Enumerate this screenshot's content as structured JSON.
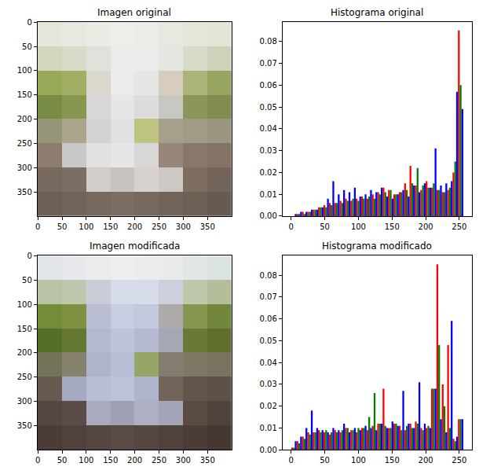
{
  "chart_data": [
    {
      "type": "image",
      "title": "Imagen original",
      "xlim": [
        -0.5,
        399.5
      ],
      "ylim": [
        399.5,
        -0.5
      ],
      "xticks": [
        0,
        50,
        100,
        150,
        200,
        250,
        300,
        350
      ],
      "yticks": [
        0,
        50,
        100,
        150,
        200,
        250,
        300,
        350
      ],
      "pixels": [
        [
          [
            230,
            230,
            220
          ],
          [
            232,
            232,
            224
          ],
          [
            235,
            235,
            228
          ],
          [
            238,
            238,
            232
          ],
          [
            236,
            236,
            230
          ],
          [
            232,
            232,
            225
          ],
          [
            228,
            230,
            218
          ],
          [
            225,
            230,
            215
          ]
        ],
        [
          [
            210,
            215,
            190
          ],
          [
            215,
            220,
            200
          ],
          [
            225,
            225,
            220
          ],
          [
            235,
            235,
            235
          ],
          [
            235,
            235,
            235
          ],
          [
            230,
            230,
            225
          ],
          [
            215,
            220,
            200
          ],
          [
            205,
            210,
            185
          ]
        ],
        [
          [
            150,
            170,
            90
          ],
          [
            160,
            175,
            100
          ],
          [
            220,
            215,
            205
          ],
          [
            235,
            235,
            235
          ],
          [
            230,
            230,
            230
          ],
          [
            215,
            205,
            190
          ],
          [
            170,
            180,
            120
          ],
          [
            150,
            165,
            95
          ]
        ],
        [
          [
            120,
            140,
            70
          ],
          [
            135,
            150,
            80
          ],
          [
            215,
            215,
            215
          ],
          [
            230,
            230,
            230
          ],
          [
            220,
            220,
            220
          ],
          [
            200,
            200,
            195
          ],
          [
            140,
            150,
            90
          ],
          [
            130,
            140,
            80
          ]
        ],
        [
          [
            150,
            150,
            120
          ],
          [
            170,
            165,
            140
          ],
          [
            210,
            210,
            210
          ],
          [
            225,
            225,
            225
          ],
          [
            190,
            195,
            130
          ],
          [
            165,
            160,
            140
          ],
          [
            160,
            155,
            135
          ],
          [
            155,
            150,
            130
          ]
        ],
        [
          [
            140,
            125,
            110
          ],
          [
            200,
            200,
            200
          ],
          [
            225,
            225,
            225
          ],
          [
            230,
            230,
            230
          ],
          [
            215,
            215,
            215
          ],
          [
            150,
            135,
            120
          ],
          [
            135,
            120,
            105
          ],
          [
            130,
            115,
            100
          ]
        ],
        [
          [
            120,
            105,
            95
          ],
          [
            125,
            110,
            100
          ],
          [
            210,
            205,
            200
          ],
          [
            200,
            195,
            190
          ],
          [
            215,
            210,
            205
          ],
          [
            205,
            200,
            195
          ],
          [
            125,
            110,
            95
          ],
          [
            115,
            100,
            90
          ]
        ],
        [
          [
            110,
            95,
            85
          ],
          [
            115,
            100,
            90
          ],
          [
            120,
            105,
            95
          ],
          [
            125,
            110,
            100
          ],
          [
            120,
            105,
            95
          ],
          [
            115,
            100,
            90
          ],
          [
            110,
            95,
            85
          ],
          [
            105,
            90,
            80
          ]
        ]
      ]
    },
    {
      "type": "histogram",
      "title": "Histograma original",
      "xlim": [
        -12.8,
        268.8
      ],
      "ylim": [
        0,
        0.089
      ],
      "xticks": [
        0,
        50,
        100,
        150,
        200,
        250
      ],
      "yticks": [
        {
          "value": 0,
          "label": "0.00"
        },
        {
          "value": 0.01,
          "label": "0.01"
        },
        {
          "value": 0.02,
          "label": "0.02"
        },
        {
          "value": 0.03,
          "label": "0.03"
        },
        {
          "value": 0.04,
          "label": "0.04"
        },
        {
          "value": 0.05,
          "label": "0.05"
        },
        {
          "value": 0.06,
          "label": "0.06"
        },
        {
          "value": 0.07,
          "label": "0.07"
        },
        {
          "value": 0.08,
          "label": "0.08"
        }
      ],
      "bins": [
        0,
        8,
        16,
        24,
        32,
        40,
        48,
        56,
        64,
        72,
        80,
        88,
        96,
        104,
        112,
        120,
        128,
        136,
        144,
        152,
        160,
        168,
        176,
        184,
        192,
        200,
        208,
        216,
        224,
        232,
        240,
        248,
        256
      ],
      "series": [
        {
          "color": "#ff0000",
          "values": [
            0,
            0.001,
            0.002,
            0.002,
            0.003,
            0.004,
            0.005,
            0.006,
            0.006,
            0.007,
            0.008,
            0.007,
            0.008,
            0.009,
            0.008,
            0.01,
            0.011,
            0.013,
            0.012,
            0.01,
            0.011,
            0.015,
            0.023,
            0.014,
            0.012,
            0.016,
            0.013,
            0.012,
            0.011,
            0.012,
            0.02,
            0.085
          ]
        },
        {
          "color": "#008000",
          "values": [
            0,
            0.001,
            0.001,
            0.002,
            0.003,
            0.004,
            0.004,
            0.005,
            0.006,
            0.006,
            0.007,
            0.008,
            0.007,
            0.008,
            0.009,
            0.008,
            0.01,
            0.011,
            0.012,
            0.01,
            0.011,
            0.012,
            0.015,
            0.022,
            0.014,
            0.013,
            0.015,
            0.012,
            0.011,
            0.013,
            0.025,
            0.06
          ]
        },
        {
          "color": "#0000ff",
          "values": [
            0.001,
            0.002,
            0.002,
            0.003,
            0.003,
            0.004,
            0.008,
            0.016,
            0.01,
            0.012,
            0.011,
            0.013,
            0.009,
            0.01,
            0.012,
            0.011,
            0.013,
            0.009,
            0.008,
            0.01,
            0.012,
            0.009,
            0.014,
            0.011,
            0.015,
            0.013,
            0.031,
            0.014,
            0.015,
            0.016,
            0.057,
            0.049
          ]
        }
      ]
    },
    {
      "type": "image",
      "title": "Imagen modificada",
      "xlim": [
        -0.5,
        399.5
      ],
      "ylim": [
        399.5,
        -0.5
      ],
      "xticks": [
        0,
        50,
        100,
        150,
        200,
        250,
        300,
        350
      ],
      "yticks": [
        0,
        50,
        100,
        150,
        200,
        250,
        300,
        350
      ],
      "pixels": [
        [
          [
            225,
            228,
            232
          ],
          [
            230,
            232,
            236
          ],
          [
            235,
            235,
            238
          ],
          [
            238,
            238,
            240
          ],
          [
            236,
            236,
            238
          ],
          [
            232,
            234,
            236
          ],
          [
            225,
            230,
            230
          ],
          [
            220,
            228,
            225
          ]
        ],
        [
          [
            185,
            195,
            165
          ],
          [
            190,
            200,
            175
          ],
          [
            200,
            205,
            215
          ],
          [
            215,
            220,
            235
          ],
          [
            215,
            220,
            235
          ],
          [
            205,
            208,
            220
          ],
          [
            190,
            200,
            170
          ],
          [
            180,
            190,
            155
          ]
        ],
        [
          [
            115,
            140,
            55
          ],
          [
            125,
            145,
            65
          ],
          [
            185,
            190,
            210
          ],
          [
            200,
            205,
            225
          ],
          [
            195,
            200,
            220
          ],
          [
            175,
            170,
            170
          ],
          [
            135,
            150,
            80
          ],
          [
            115,
            135,
            60
          ]
        ],
        [
          [
            85,
            110,
            40
          ],
          [
            100,
            120,
            50
          ],
          [
            180,
            185,
            210
          ],
          [
            190,
            195,
            220
          ],
          [
            180,
            185,
            210
          ],
          [
            165,
            168,
            180
          ],
          [
            105,
            120,
            55
          ],
          [
            95,
            110,
            45
          ]
        ],
        [
          [
            115,
            115,
            90
          ],
          [
            135,
            130,
            110
          ],
          [
            175,
            180,
            205
          ],
          [
            185,
            190,
            215
          ],
          [
            150,
            165,
            100
          ],
          [
            130,
            125,
            110
          ],
          [
            125,
            120,
            100
          ],
          [
            120,
            115,
            95
          ]
        ],
        [
          [
            105,
            90,
            80
          ],
          [
            165,
            170,
            195
          ],
          [
            185,
            190,
            215
          ],
          [
            190,
            195,
            220
          ],
          [
            175,
            180,
            205
          ],
          [
            115,
            100,
            90
          ],
          [
            100,
            85,
            75
          ],
          [
            95,
            80,
            70
          ]
        ],
        [
          [
            85,
            70,
            65
          ],
          [
            90,
            75,
            70
          ],
          [
            170,
            170,
            190
          ],
          [
            160,
            160,
            180
          ],
          [
            175,
            175,
            195
          ],
          [
            165,
            165,
            185
          ],
          [
            90,
            75,
            65
          ],
          [
            80,
            65,
            60
          ]
        ],
        [
          [
            75,
            60,
            55
          ],
          [
            80,
            65,
            60
          ],
          [
            85,
            70,
            65
          ],
          [
            90,
            75,
            70
          ],
          [
            85,
            70,
            65
          ],
          [
            80,
            65,
            60
          ],
          [
            75,
            60,
            55
          ],
          [
            70,
            55,
            50
          ]
        ]
      ]
    },
    {
      "type": "histogram",
      "title": "Histograma modificado",
      "xlim": [
        -12.8,
        268.8
      ],
      "ylim": [
        0,
        0.089
      ],
      "xticks": [
        0,
        50,
        100,
        150,
        200,
        250
      ],
      "yticks": [
        {
          "value": 0,
          "label": "0.00"
        },
        {
          "value": 0.01,
          "label": "0.01"
        },
        {
          "value": 0.02,
          "label": "0.02"
        },
        {
          "value": 0.03,
          "label": "0.03"
        },
        {
          "value": 0.04,
          "label": "0.04"
        },
        {
          "value": 0.05,
          "label": "0.05"
        },
        {
          "value": 0.06,
          "label": "0.06"
        },
        {
          "value": 0.07,
          "label": "0.07"
        },
        {
          "value": 0.08,
          "label": "0.08"
        }
      ],
      "bins": [
        0,
        8,
        16,
        24,
        32,
        40,
        48,
        56,
        64,
        72,
        80,
        88,
        96,
        104,
        112,
        120,
        128,
        136,
        144,
        152,
        160,
        168,
        176,
        184,
        192,
        200,
        208,
        216,
        224,
        232,
        240,
        248,
        256
      ],
      "series": [
        {
          "color": "#ff0000",
          "values": [
            0.001,
            0.004,
            0.006,
            0.008,
            0.008,
            0.009,
            0.008,
            0.007,
            0.009,
            0.008,
            0.01,
            0.009,
            0.008,
            0.01,
            0.009,
            0.011,
            0.012,
            0.028,
            0.01,
            0.012,
            0.011,
            0.009,
            0.012,
            0.013,
            0.01,
            0.01,
            0.028,
            0.085,
            0.03,
            0.048,
            0.005,
            0.014
          ]
        },
        {
          "color": "#008000",
          "values": [
            0.001,
            0.003,
            0.005,
            0.007,
            0.008,
            0.008,
            0.009,
            0.008,
            0.008,
            0.009,
            0.01,
            0.009,
            0.01,
            0.01,
            0.015,
            0.026,
            0.012,
            0.011,
            0.01,
            0.012,
            0.009,
            0.011,
            0.01,
            0.012,
            0.009,
            0.011,
            0.028,
            0.048,
            0.02,
            0.01,
            0.004,
            0.014
          ]
        },
        {
          "color": "#0000ff",
          "values": [
            0.004,
            0.006,
            0.01,
            0.018,
            0.01,
            0.009,
            0.008,
            0.01,
            0.009,
            0.012,
            0.008,
            0.01,
            0.009,
            0.011,
            0.01,
            0.009,
            0.012,
            0.01,
            0.013,
            0.011,
            0.027,
            0.012,
            0.01,
            0.031,
            0.012,
            0.01,
            0.028,
            0.014,
            0.008,
            0.059,
            0.006,
            0.014
          ]
        }
      ]
    }
  ]
}
